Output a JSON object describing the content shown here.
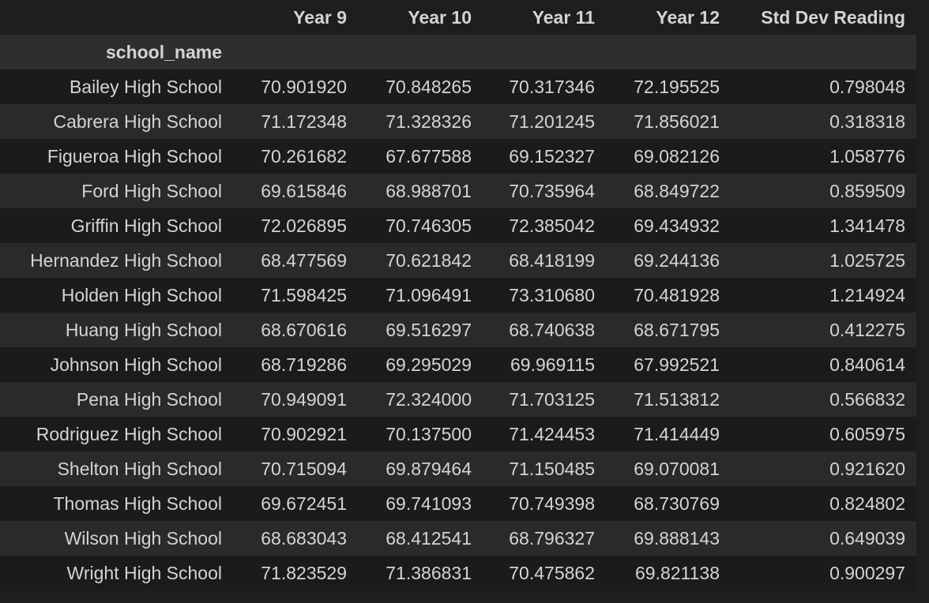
{
  "table": {
    "columns": [
      "",
      "Year 9",
      "Year 10",
      "Year 11",
      "Year 12",
      "Std Dev Reading"
    ],
    "index_name": "school_name",
    "rows": [
      [
        "Bailey High School",
        "70.901920",
        "70.848265",
        "70.317346",
        "72.195525",
        "0.798048"
      ],
      [
        "Cabrera High School",
        "71.172348",
        "71.328326",
        "71.201245",
        "71.856021",
        "0.318318"
      ],
      [
        "Figueroa High School",
        "70.261682",
        "67.677588",
        "69.152327",
        "69.082126",
        "1.058776"
      ],
      [
        "Ford High School",
        "69.615846",
        "68.988701",
        "70.735964",
        "68.849722",
        "0.859509"
      ],
      [
        "Griffin High School",
        "72.026895",
        "70.746305",
        "72.385042",
        "69.434932",
        "1.341478"
      ],
      [
        "Hernandez High School",
        "68.477569",
        "70.621842",
        "68.418199",
        "69.244136",
        "1.025725"
      ],
      [
        "Holden High School",
        "71.598425",
        "71.096491",
        "73.310680",
        "70.481928",
        "1.214924"
      ],
      [
        "Huang High School",
        "68.670616",
        "69.516297",
        "68.740638",
        "68.671795",
        "0.412275"
      ],
      [
        "Johnson High School",
        "68.719286",
        "69.295029",
        "69.969115",
        "67.992521",
        "0.840614"
      ],
      [
        "Pena High School",
        "70.949091",
        "72.324000",
        "71.703125",
        "71.513812",
        "0.566832"
      ],
      [
        "Rodriguez High School",
        "70.902921",
        "70.137500",
        "71.424453",
        "71.414449",
        "0.605975"
      ],
      [
        "Shelton High School",
        "70.715094",
        "69.879464",
        "71.150485",
        "69.070081",
        "0.921620"
      ],
      [
        "Thomas High School",
        "69.672451",
        "69.741093",
        "70.749398",
        "68.730769",
        "0.824802"
      ],
      [
        "Wilson High School",
        "68.683043",
        "68.412541",
        "68.796327",
        "69.888143",
        "0.649039"
      ],
      [
        "Wright High School",
        "71.823529",
        "71.386831",
        "70.475862",
        "69.821138",
        "0.900297"
      ]
    ]
  },
  "colors": {
    "background": "#1e1e1e",
    "row_odd": "#1b1b1b",
    "row_even": "#2a2a2a",
    "index_header": "#2e2e2e",
    "text": "#d4d4d4"
  }
}
